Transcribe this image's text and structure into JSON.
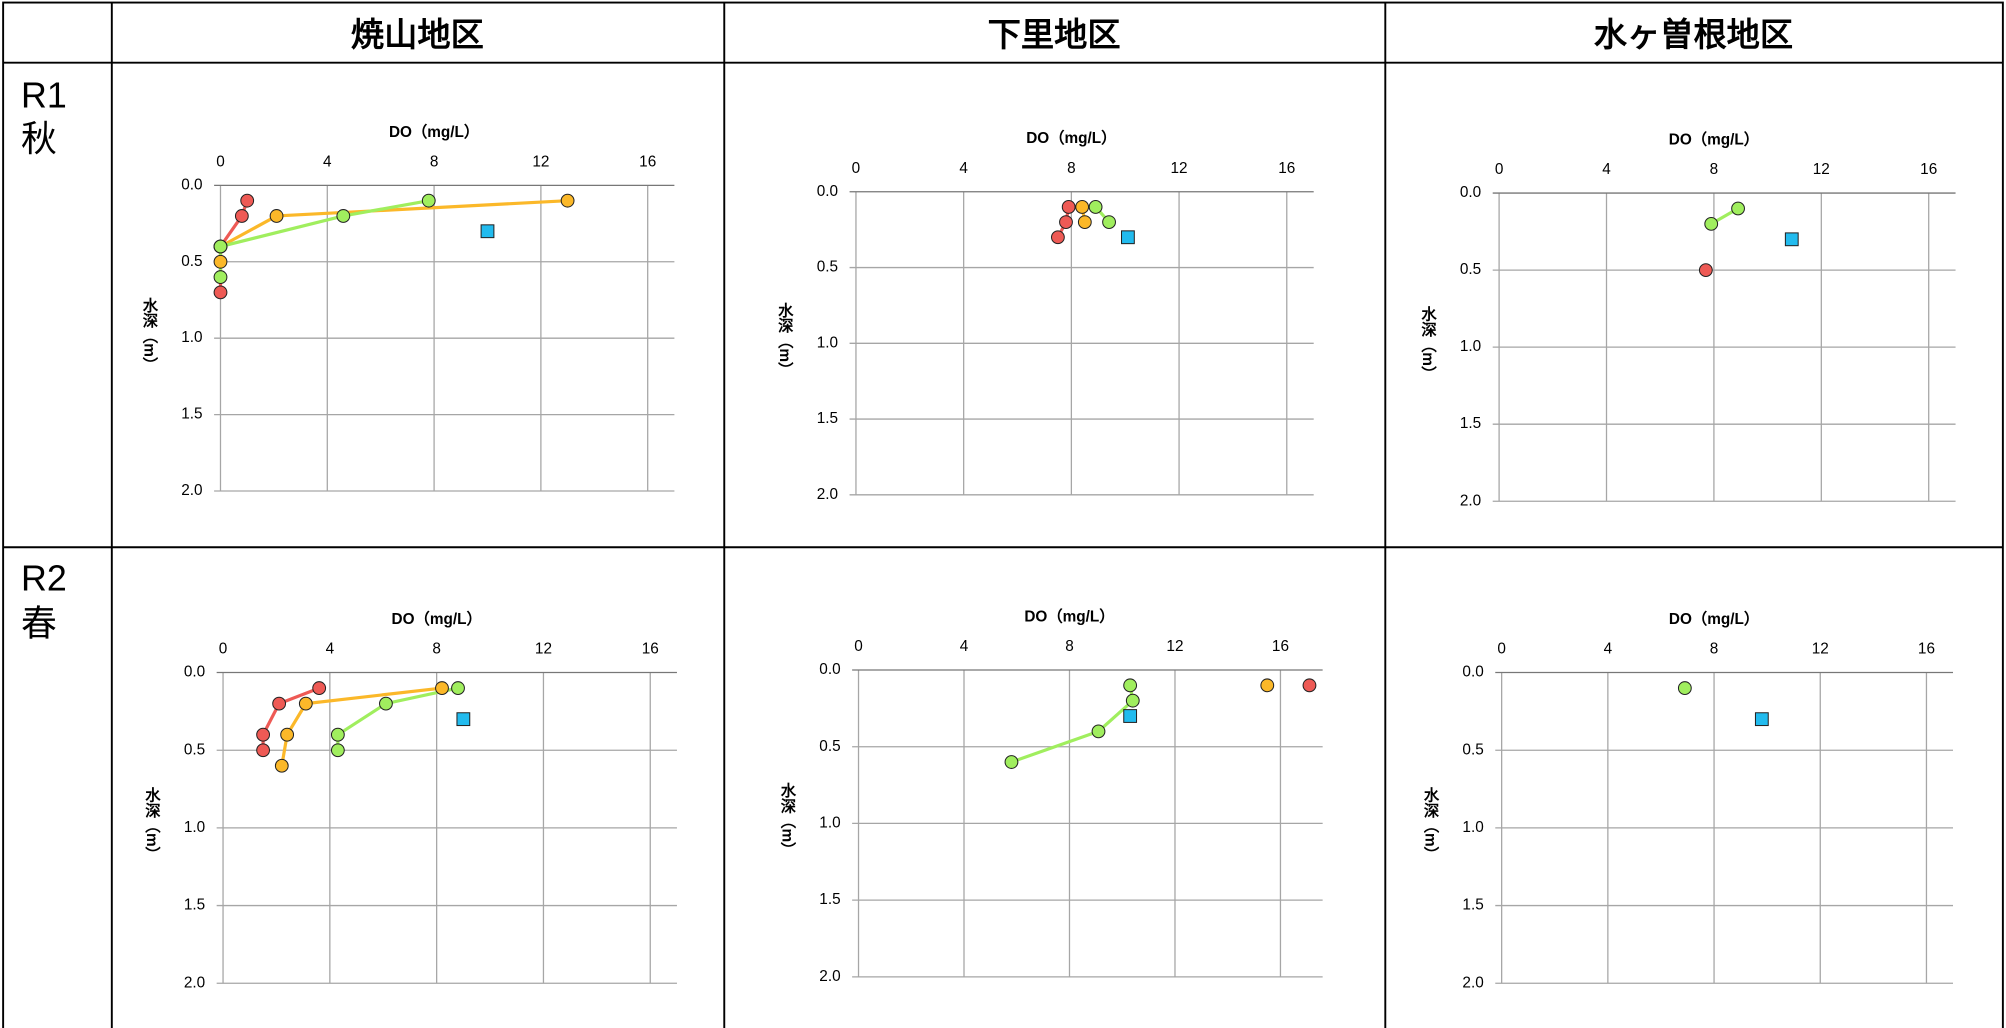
{
  "table": {
    "columns": [
      "焼山地区",
      "下里地区",
      "水ヶ曽根地区"
    ],
    "rows": [
      [
        "R1",
        "秋"
      ],
      [
        "R2",
        "春"
      ]
    ]
  },
  "chart_data": [
    {
      "type": "line",
      "xlabel": "DO（mg/L）",
      "ylabel": "水深（m）",
      "xlim": [
        0,
        17
      ],
      "xticks": [
        0,
        4,
        8,
        12,
        16
      ],
      "ylim": [
        0,
        2
      ],
      "yticks": [
        {
          "value": 0,
          "label": "0.0"
        },
        {
          "value": 0.5,
          "label": "0.5"
        },
        {
          "value": 1,
          "label": "1.0"
        },
        {
          "value": 1.5,
          "label": "1.5"
        },
        {
          "value": 2,
          "label": "2.0"
        }
      ],
      "y_inverted": true,
      "grid": true,
      "series": [
        {
          "color": "#ee5a55",
          "marker": "circle",
          "line": true,
          "x": [
            1.0,
            0.8,
            0,
            0
          ],
          "values": [
            0.1,
            0.2,
            0.4,
            0.7
          ]
        },
        {
          "color": "#fbb829",
          "marker": "circle",
          "line": true,
          "x": [
            13,
            2.1,
            0,
            0
          ],
          "values": [
            0.1,
            0.2,
            0.4,
            0.5
          ]
        },
        {
          "color": "#a0ee5e",
          "marker": "circle",
          "line": true,
          "x": [
            7.8,
            4.6,
            0,
            0
          ],
          "values": [
            0.1,
            0.2,
            0.4,
            0.6
          ]
        },
        {
          "color": "#22bbee",
          "marker": "square",
          "line": false,
          "x": [
            10
          ],
          "values": [
            0.3
          ]
        }
      ]
    },
    {
      "type": "line",
      "xlabel": "DO（mg/L）",
      "ylabel": "水深（m）",
      "xlim": [
        0,
        17
      ],
      "xticks": [
        0,
        4,
        8,
        12,
        16
      ],
      "ylim": [
        0,
        2
      ],
      "yticks": [
        {
          "value": 0,
          "label": "0.0"
        },
        {
          "value": 0.5,
          "label": "0.5"
        },
        {
          "value": 1,
          "label": "1.0"
        },
        {
          "value": 1.5,
          "label": "1.5"
        },
        {
          "value": 2,
          "label": "2.0"
        }
      ],
      "y_inverted": true,
      "grid": true,
      "series": [
        {
          "color": "#ee5a55",
          "marker": "circle",
          "line": true,
          "x": [
            7.9,
            7.8,
            7.5
          ],
          "values": [
            0.1,
            0.2,
            0.3
          ]
        },
        {
          "color": "#fbb829",
          "marker": "circle",
          "line": true,
          "x": [
            8.4,
            8.5
          ],
          "values": [
            0.1,
            0.2
          ]
        },
        {
          "color": "#a0ee5e",
          "marker": "circle",
          "line": true,
          "x": [
            8.9,
            9.4
          ],
          "values": [
            0.1,
            0.2
          ]
        },
        {
          "color": "#22bbee",
          "marker": "square",
          "line": false,
          "x": [
            10.1
          ],
          "values": [
            0.3
          ]
        }
      ]
    },
    {
      "type": "line",
      "xlabel": "DO（mg/L）",
      "ylabel": "水深（m）",
      "xlim": [
        0,
        17
      ],
      "xticks": [
        0,
        4,
        8,
        12,
        16
      ],
      "ylim": [
        0,
        2
      ],
      "yticks": [
        {
          "value": 0,
          "label": "0.0"
        },
        {
          "value": 0.5,
          "label": "0.5"
        },
        {
          "value": 1,
          "label": "1.0"
        },
        {
          "value": 1.5,
          "label": "1.5"
        },
        {
          "value": 2,
          "label": "2.0"
        }
      ],
      "y_inverted": true,
      "grid": true,
      "series": [
        {
          "color": "#ee5a55",
          "marker": "circle",
          "line": true,
          "x": [
            7.7
          ],
          "values": [
            0.5
          ]
        },
        {
          "color": "#a0ee5e",
          "marker": "circle",
          "line": true,
          "x": [
            8.9,
            7.9
          ],
          "values": [
            0.1,
            0.2
          ]
        },
        {
          "color": "#22bbee",
          "marker": "square",
          "line": false,
          "x": [
            10.9
          ],
          "values": [
            0.3
          ]
        }
      ]
    },
    {
      "type": "line",
      "xlabel": "DO（mg/L）",
      "ylabel": "水深（m）",
      "xlim": [
        0,
        17
      ],
      "xticks": [
        0,
        4,
        8,
        12,
        16
      ],
      "ylim": [
        0,
        2
      ],
      "yticks": [
        {
          "value": 0,
          "label": "0.0"
        },
        {
          "value": 0.5,
          "label": "0.5"
        },
        {
          "value": 1,
          "label": "1.0"
        },
        {
          "value": 1.5,
          "label": "1.5"
        },
        {
          "value": 2,
          "label": "2.0"
        }
      ],
      "y_inverted": true,
      "grid": true,
      "series": [
        {
          "color": "#ee5a55",
          "marker": "circle",
          "line": true,
          "x": [
            3.6,
            2.1,
            1.5,
            1.5
          ],
          "values": [
            0.1,
            0.2,
            0.4,
            0.5
          ]
        },
        {
          "color": "#fbb829",
          "marker": "circle",
          "line": true,
          "x": [
            8.2,
            3.1,
            2.4,
            2.2
          ],
          "values": [
            0.1,
            0.2,
            0.4,
            0.6
          ]
        },
        {
          "color": "#a0ee5e",
          "marker": "circle",
          "line": true,
          "x": [
            8.8,
            6.1,
            4.3,
            4.3
          ],
          "values": [
            0.1,
            0.2,
            0.4,
            0.5
          ]
        },
        {
          "color": "#22bbee",
          "marker": "square",
          "line": false,
          "x": [
            9.0
          ],
          "values": [
            0.3
          ]
        }
      ]
    },
    {
      "type": "line",
      "xlabel": "DO（mg/L）",
      "ylabel": "水深（m）",
      "xlim": [
        0,
        17.6
      ],
      "xticks": [
        0,
        4,
        8,
        12,
        16
      ],
      "ylim": [
        0,
        2
      ],
      "yticks": [
        {
          "value": 0,
          "label": "0.0"
        },
        {
          "value": 0.5,
          "label": "0.5"
        },
        {
          "value": 1,
          "label": "1.0"
        },
        {
          "value": 1.5,
          "label": "1.5"
        },
        {
          "value": 2,
          "label": "2.0"
        }
      ],
      "y_inverted": true,
      "grid": true,
      "series": [
        {
          "color": "#ee5a55",
          "marker": "circle",
          "line": true,
          "x": [
            17.1
          ],
          "values": [
            0.1
          ]
        },
        {
          "color": "#fbb829",
          "marker": "circle",
          "line": true,
          "x": [
            15.5
          ],
          "values": [
            0.1
          ]
        },
        {
          "color": "#a0ee5e",
          "marker": "circle",
          "line": true,
          "x": [
            10.3,
            10.4,
            9.1,
            5.8
          ],
          "values": [
            0.1,
            0.2,
            0.4,
            0.6
          ]
        },
        {
          "color": "#22bbee",
          "marker": "square",
          "line": false,
          "x": [
            10.3
          ],
          "values": [
            0.3
          ]
        }
      ]
    },
    {
      "type": "line",
      "xlabel": "DO（mg/L）",
      "ylabel": "水深（m）",
      "xlim": [
        0,
        17
      ],
      "xticks": [
        0,
        4,
        8,
        12,
        16
      ],
      "ylim": [
        0,
        2
      ],
      "yticks": [
        {
          "value": 0,
          "label": "0.0"
        },
        {
          "value": 0.5,
          "label": "0.5"
        },
        {
          "value": 1,
          "label": "1.0"
        },
        {
          "value": 1.5,
          "label": "1.5"
        },
        {
          "value": 2,
          "label": "2.0"
        }
      ],
      "y_inverted": true,
      "grid": true,
      "series": [
        {
          "color": "#a0ee5e",
          "marker": "circle",
          "line": true,
          "x": [
            6.9
          ],
          "values": [
            0.1
          ]
        },
        {
          "color": "#22bbee",
          "marker": "square",
          "line": false,
          "x": [
            9.8
          ],
          "values": [
            0.3
          ]
        }
      ]
    }
  ]
}
